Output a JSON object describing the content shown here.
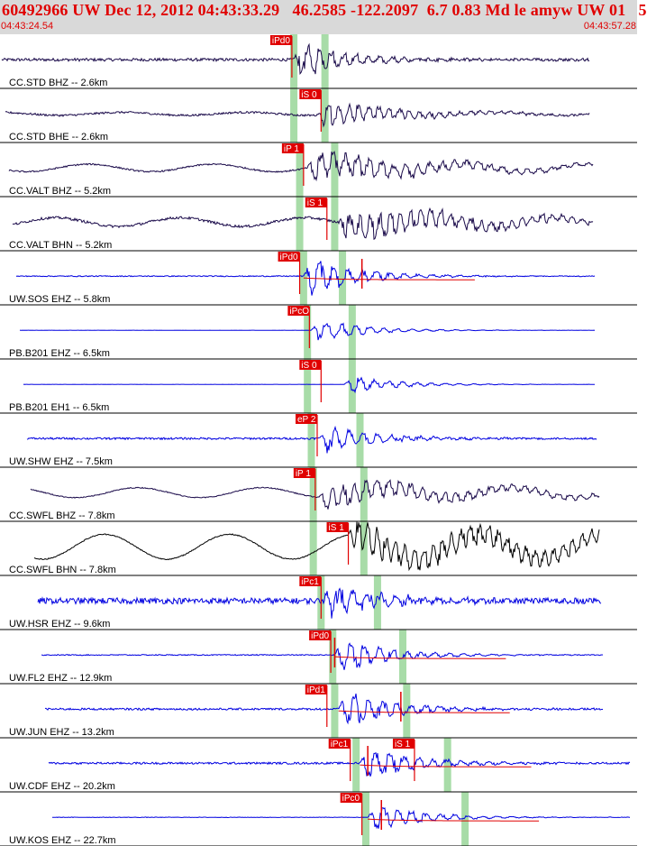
{
  "header": {
    "title": "60492966 UW Dec 12, 2012 04:43:33.29   46.2585 -122.2097  6.7 0.83 Md le amyw UW 01   5",
    "start_time": "04:43:24.54",
    "end_time": "04:43:57.28"
  },
  "colors": {
    "header_bg": "#d9d9d9",
    "header_text": "#e00000",
    "trace_dark": "#1a0a4a",
    "trace_blue": "#0000e0",
    "trace_black": "#000000",
    "pick_flag": "#e00000",
    "theoretical_band": "#a8dca8",
    "synthetic": "#e00000"
  },
  "chart_data": {
    "type": "seismogram",
    "x_axis": {
      "unit": "seconds since 04:43:24.54",
      "range": [
        0,
        32.74
      ]
    },
    "theoretical_arrivals": [
      {
        "trace": 0,
        "t": [
          15.1,
          16.7
        ]
      },
      {
        "trace": 1,
        "t": [
          15.1,
          16.7
        ]
      },
      {
        "trace": 2,
        "t": [
          15.4,
          17.2
        ]
      },
      {
        "trace": 3,
        "t": [
          15.4,
          17.2
        ]
      },
      {
        "trace": 4,
        "t": [
          15.6,
          17.6
        ]
      },
      {
        "trace": 5,
        "t": [
          15.8,
          18.1
        ]
      },
      {
        "trace": 6,
        "t": [
          15.8,
          18.1
        ]
      },
      {
        "trace": 7,
        "t": [
          16.0,
          18.5
        ]
      },
      {
        "trace": 8,
        "t": [
          16.1,
          18.7
        ]
      },
      {
        "trace": 9,
        "t": [
          16.1,
          18.7
        ]
      },
      {
        "trace": 10,
        "t": [
          16.5,
          19.4
        ]
      },
      {
        "trace": 11,
        "t": [
          17.1,
          20.7
        ]
      },
      {
        "trace": 12,
        "t": [
          17.2,
          20.9
        ]
      },
      {
        "trace": 13,
        "t": [
          18.3,
          23.0
        ]
      },
      {
        "trace": 14,
        "t": [
          18.8,
          23.9
        ]
      }
    ],
    "traces": [
      {
        "label": "CC.STD BHZ -- 2.6km",
        "style": "dark",
        "picks": [
          {
            "text": "iPd0",
            "t": 15.0
          }
        ],
        "onset": 15.1,
        "end": 30.3,
        "amp": 0.75,
        "noise": 0.06,
        "wave": 0,
        "freq": 3.0,
        "syn": false
      },
      {
        "label": "CC.STD BHE -- 2.6km",
        "style": "dark",
        "picks": [
          {
            "text": "iS 0",
            "t": 16.5
          }
        ],
        "onset": 16.3,
        "end": 30.3,
        "amp": 0.55,
        "noise": 0.04,
        "wave": 0.12,
        "freq": 2.5,
        "syn": false
      },
      {
        "label": "CC.VALT BHZ -- 5.2km",
        "style": "dark",
        "picks": [
          {
            "text": "iP 1",
            "t": 15.6
          }
        ],
        "onset": 15.8,
        "end": 30.5,
        "amp": 0.65,
        "noise": 0.03,
        "wave": 0.3,
        "freq": 3.0,
        "syn": false
      },
      {
        "label": "CC.VALT BHN -- 5.2km",
        "style": "dark",
        "picks": [
          {
            "text": "iS 1",
            "t": 16.8
          }
        ],
        "onset": 17.4,
        "end": 30.5,
        "amp": 0.7,
        "noise": 0.05,
        "wave": 0.35,
        "freq": 2.5,
        "syn": false
      },
      {
        "label": "UW.SOS EHZ -- 5.8km",
        "style": "blue",
        "picks": [
          {
            "text": "iPd0",
            "t": 15.4
          }
        ],
        "onset": 15.6,
        "end": 30.6,
        "amp": 0.8,
        "noise": 0.02,
        "wave": 0,
        "freq": 3.5,
        "syn": true,
        "spike": 18.6
      },
      {
        "label": "PB.B201 EHZ -- 6.5km",
        "style": "blue",
        "picks": [
          {
            "text": "iPcO",
            "t": 15.9
          }
        ],
        "onset": 16.0,
        "end": 30.6,
        "amp": 0.45,
        "noise": 0.005,
        "wave": 0,
        "freq": 3.5,
        "syn": false
      },
      {
        "label": "PB.B201 EH1 -- 6.5km",
        "style": "blue",
        "picks": [
          {
            "text": "iS 0",
            "t": 16.5
          }
        ],
        "onset": 17.7,
        "end": 30.6,
        "amp": 0.35,
        "noise": 0.005,
        "wave": 0,
        "freq": 3.5,
        "syn": false
      },
      {
        "label": "UW.SHW EHZ -- 7.5km",
        "style": "blue",
        "picks": [
          {
            "text": "eP 2",
            "t": 16.3
          }
        ],
        "onset": 16.4,
        "end": 30.7,
        "amp": 0.6,
        "noise": 0.04,
        "wave": 0,
        "freq": 3.5,
        "syn": false
      },
      {
        "label": "CC.SWFL BHZ -- 7.8km",
        "style": "dark",
        "picks": [
          {
            "text": "iP 1",
            "t": 16.2
          }
        ],
        "onset": 16.4,
        "end": 30.8,
        "amp": 0.55,
        "noise": 0.02,
        "wave": 0.4,
        "freq": 2.8,
        "syn": false
      },
      {
        "label": "CC.SWFL BHN -- 7.8km",
        "style": "black",
        "picks": [
          {
            "text": "iS 1",
            "t": 17.9
          }
        ],
        "onset": 17.9,
        "end": 30.8,
        "amp": 0.7,
        "noise": 0.02,
        "wave": 1.0,
        "freq": 2.3,
        "syn": false
      },
      {
        "label": "UW.HSR EHZ -- 9.6km",
        "style": "blue",
        "picks": [
          {
            "text": "iPc1",
            "t": 16.5
          }
        ],
        "onset": 16.6,
        "end": 30.9,
        "amp": 0.75,
        "noise": 0.12,
        "wave": 0,
        "freq": 3.5,
        "syn": false
      },
      {
        "label": "UW.FL2 EHZ -- 12.9km",
        "style": "blue",
        "picks": [
          {
            "text": "iPd0",
            "t": 17.0
          }
        ],
        "onset": 17.2,
        "end": 31.0,
        "amp": 0.75,
        "noise": 0.02,
        "wave": 0,
        "freq": 3.5,
        "syn": true,
        "spike": 17.2
      },
      {
        "label": "UW.JUN EHZ -- 13.2km",
        "style": "blue",
        "picks": [
          {
            "text": "iPd1",
            "t": 16.8
          }
        ],
        "onset": 17.4,
        "end": 31.0,
        "amp": 0.8,
        "noise": 0.04,
        "wave": 0,
        "freq": 3.5,
        "syn": true,
        "spike": 20.6
      },
      {
        "label": "UW.CDF EHZ -- 20.2km",
        "style": "blue",
        "picks": [
          {
            "text": "iPc1",
            "t": 18.0
          },
          {
            "text": "iS 1",
            "t": 21.3
          }
        ],
        "onset": 18.5,
        "end": 32.4,
        "amp": 0.7,
        "noise": 0.04,
        "wave": 0,
        "freq": 3.5,
        "syn": true,
        "spike": 18.9
      },
      {
        "label": "UW.KOS EHZ -- 22.7km",
        "style": "blue",
        "picks": [
          {
            "text": "iPc0",
            "t": 18.6
          }
        ],
        "onset": 18.9,
        "end": 32.4,
        "amp": 0.55,
        "noise": 0.01,
        "wave": 0,
        "freq": 3.5,
        "syn": true,
        "spike": 19.6
      }
    ]
  }
}
